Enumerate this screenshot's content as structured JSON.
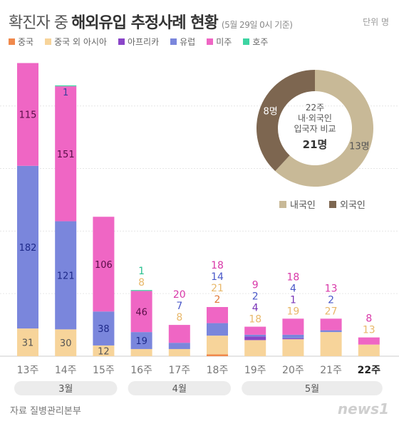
{
  "title": {
    "part1": "확진자 중",
    "part2": "해외유입 추정사례 현황",
    "note": "(5월 29일 0시 기준)"
  },
  "unit_label": "단위 명",
  "legend": [
    {
      "label": "중국",
      "color": "#f0894c"
    },
    {
      "label": "중국 외 아시아",
      "color": "#f7d49a"
    },
    {
      "label": "아프리카",
      "color": "#8a45c8"
    },
    {
      "label": "유럽",
      "color": "#7a86dc"
    },
    {
      "label": "미주",
      "color": "#ef66c4"
    },
    {
      "label": "호주",
      "color": "#3dd4a2"
    }
  ],
  "chart_data": {
    "type": "bar",
    "stacked": true,
    "categories": [
      "13주",
      "14주",
      "15주",
      "16주",
      "17주",
      "18주",
      "19주",
      "20주",
      "21주",
      "22주"
    ],
    "series": [
      {
        "name": "중국",
        "color": "#f0894c",
        "values": [
          0,
          0,
          0,
          0,
          0,
          2,
          0,
          0,
          0,
          0
        ]
      },
      {
        "name": "중국 외 아시아",
        "color": "#f7d49a",
        "values": [
          31,
          30,
          12,
          8,
          8,
          21,
          18,
          19,
          27,
          13
        ]
      },
      {
        "name": "아프리카",
        "color": "#8a45c8",
        "values": [
          0,
          0,
          0,
          0,
          0,
          0,
          4,
          1,
          0,
          0
        ]
      },
      {
        "name": "유럽",
        "color": "#7a86dc",
        "values": [
          182,
          121,
          38,
          19,
          7,
          14,
          2,
          4,
          2,
          0
        ]
      },
      {
        "name": "미주",
        "color": "#ef66c4",
        "values": [
          115,
          151,
          106,
          46,
          20,
          18,
          9,
          18,
          13,
          8
        ]
      },
      {
        "name": "호주",
        "color": "#3dd4a2",
        "values": [
          0,
          1,
          0,
          1,
          0,
          0,
          0,
          0,
          0,
          0
        ]
      }
    ],
    "ylim": [
      0,
      330
    ],
    "grid": true,
    "month_groups": [
      {
        "label": "3월",
        "from": 0,
        "to": 2
      },
      {
        "label": "4월",
        "from": 3,
        "to": 5
      },
      {
        "label": "5월",
        "from": 6,
        "to": 9
      }
    ],
    "donut": {
      "type": "pie",
      "title_line1": "22주",
      "title_line2": "내·외국인",
      "title_line3": "입국자 비교",
      "total": "21명",
      "slices": [
        {
          "name": "내국인",
          "value": 13,
          "label": "13명",
          "color": "#c8b997"
        },
        {
          "name": "외국인",
          "value": 8,
          "label": "8명",
          "color": "#7d6650"
        }
      ]
    }
  },
  "footer": {
    "source": "자료 질병관리본부",
    "logo": "news1"
  }
}
